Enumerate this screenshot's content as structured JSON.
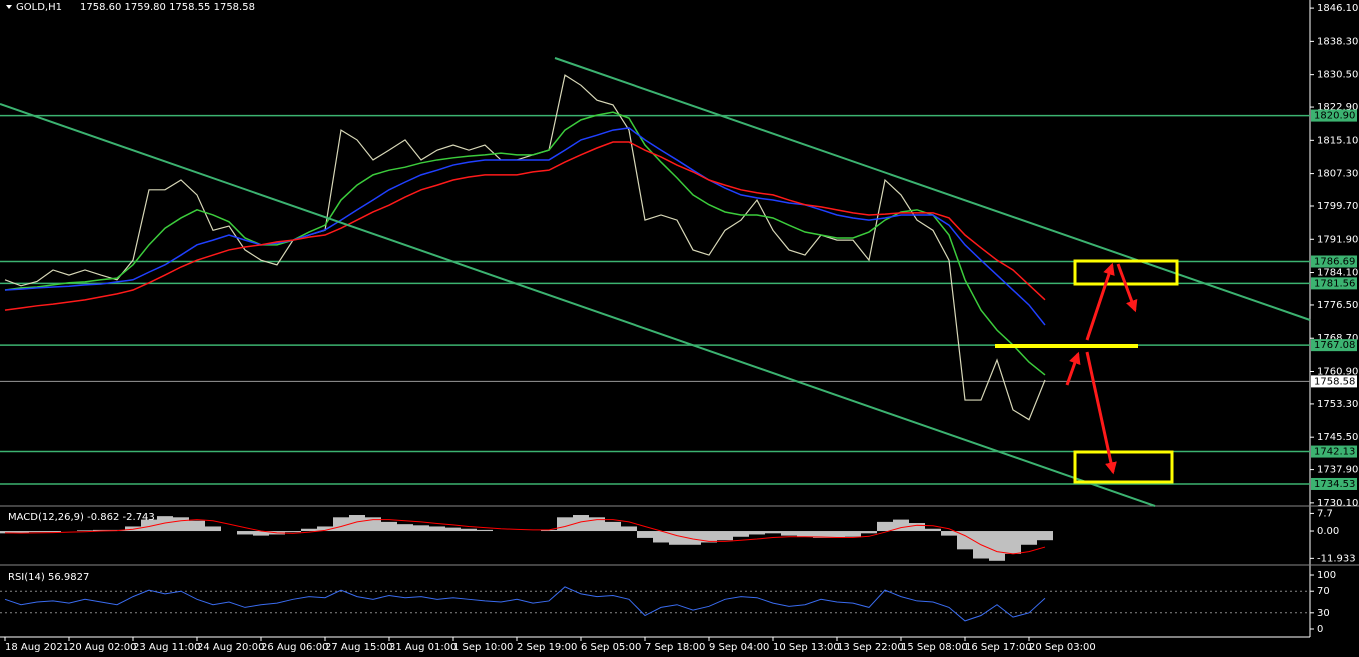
{
  "chart_data": [
    {
      "type": "line",
      "title": "GOLD,H1",
      "subtitle": "1758.60 1759.80 1758.55 1758.58",
      "categories": [
        "18 Aug 2021",
        null,
        null,
        null,
        "20 Aug 02:00",
        null,
        null,
        null,
        "23 Aug 11:00",
        null,
        null,
        null,
        "24 Aug 20:00",
        null,
        null,
        null,
        "26 Aug 06:00",
        null,
        null,
        null,
        "27 Aug 15:00",
        null,
        null,
        null,
        "31 Aug 01:00",
        null,
        null,
        null,
        "1 Sep 10:00",
        null,
        null,
        null,
        "2 Sep 19:00",
        null,
        null,
        null,
        "6 Sep 05:00",
        null,
        null,
        null,
        "7 Sep 18:00",
        null,
        null,
        null,
        "9 Sep 04:00",
        null,
        null,
        null,
        "10 Sep 13:00",
        null,
        null,
        null,
        "13 Sep 22:00",
        null,
        null,
        null,
        "15 Sep 08:00",
        null,
        null,
        null,
        "16 Sep 17:00",
        null,
        null,
        null,
        "20 Sep 03:00",
        null
      ],
      "series": [
        {
          "color": "#d8d8b8",
          "values": [
            1782.4,
            1781,
            1782,
            1784.7,
            1783.5,
            1784.7,
            1783.5,
            1782.4,
            1787,
            1803.5,
            1803.5,
            1805.8,
            1802.3,
            1794,
            1795,
            1789.4,
            1787,
            1785.9,
            1791.7,
            1792.9,
            1794,
            1817.5,
            1815.2,
            1810.5,
            1812.8,
            1815.2,
            1810.5,
            1812.8,
            1814,
            1812.8,
            1814,
            1810.5,
            1810.5,
            1811.7,
            1812.8,
            1830.4,
            1828,
            1824.5,
            1823.4,
            1817.5,
            1796.4,
            1797.6,
            1796.4,
            1789.4,
            1788.2,
            1794,
            1796.4,
            1801.1,
            1794,
            1789.4,
            1788.2,
            1792.9,
            1791.7,
            1791.7,
            1787,
            1805.8,
            1802.3,
            1796.4,
            1794,
            1787,
            1754.2,
            1754.2,
            1763.6,
            1751.9,
            1749.6,
            1758.9
          ]
        },
        {
          "color": "#3ccc3c",
          "values": [
            1780,
            1780.5,
            1780.7,
            1781.2,
            1781.7,
            1781.9,
            1782.4,
            1782.8,
            1785.9,
            1790.6,
            1794.5,
            1796.9,
            1798.8,
            1797.6,
            1796,
            1792.2,
            1790.6,
            1790.6,
            1791.7,
            1793.6,
            1795.2,
            1801.1,
            1804.6,
            1807,
            1808.1,
            1808.8,
            1809.8,
            1810.5,
            1811,
            1811.4,
            1811.7,
            1812.1,
            1811.7,
            1811.7,
            1812.8,
            1817.5,
            1819.9,
            1821,
            1821.7,
            1820.3,
            1814,
            1810,
            1806.3,
            1802.3,
            1800,
            1798.3,
            1797.6,
            1797.6,
            1796.9,
            1795.2,
            1793.6,
            1792.9,
            1792.2,
            1792.2,
            1793.6,
            1796.4,
            1798.3,
            1798.8,
            1797.6,
            1792.9,
            1782.4,
            1775.3,
            1770.6,
            1767.1,
            1763.1,
            1760.1
          ]
        },
        {
          "color": "#2040ff",
          "values": [
            1780,
            1780.2,
            1780.5,
            1780.7,
            1780.9,
            1781.2,
            1781.4,
            1781.9,
            1782.4,
            1784.2,
            1785.9,
            1788.2,
            1790.6,
            1791.7,
            1792.9,
            1791.7,
            1790.6,
            1791,
            1791.7,
            1792.9,
            1794.1,
            1796.4,
            1798.8,
            1801.1,
            1803.5,
            1805.3,
            1807,
            1808.1,
            1809.3,
            1810,
            1810.5,
            1810.5,
            1810.5,
            1810.5,
            1810.5,
            1812.8,
            1815.2,
            1816.3,
            1817.5,
            1818,
            1815.2,
            1812.8,
            1810.5,
            1808.1,
            1805.8,
            1803.9,
            1802.3,
            1801.6,
            1801.1,
            1800.4,
            1800,
            1798.8,
            1797.6,
            1796.9,
            1796.4,
            1796.9,
            1797.6,
            1797.6,
            1797.6,
            1795.2,
            1790.6,
            1787,
            1783.5,
            1780,
            1776.5,
            1771.8
          ]
        },
        {
          "color": "#ff1a1a",
          "values": [
            1775.3,
            1775.8,
            1776.3,
            1776.7,
            1777.2,
            1777.7,
            1778.4,
            1779.1,
            1780,
            1781.7,
            1783.5,
            1785.4,
            1787,
            1788.2,
            1789.4,
            1790.1,
            1790.6,
            1791.3,
            1791.7,
            1792.4,
            1792.9,
            1794.5,
            1796.4,
            1798.3,
            1799.9,
            1801.8,
            1803.5,
            1804.6,
            1805.8,
            1806.5,
            1807,
            1807,
            1807,
            1807.7,
            1808.1,
            1810,
            1811.7,
            1813.3,
            1814.7,
            1814.7,
            1812.8,
            1811.2,
            1809.3,
            1807.7,
            1805.8,
            1804.6,
            1803.5,
            1802.8,
            1802.3,
            1801.1,
            1800,
            1799.5,
            1798.8,
            1798.1,
            1797.6,
            1797.8,
            1798.1,
            1798.1,
            1798.1,
            1796.9,
            1792.9,
            1789.9,
            1787,
            1784.7,
            1781.2,
            1777.7
          ]
        }
      ],
      "ylim": [
        1729.6,
        1848.0
      ],
      "yticks": [
        {
          "value": 1846.1,
          "label": "1846.10"
        },
        {
          "value": 1838.3,
          "label": "1838.30"
        },
        {
          "value": 1830.5,
          "label": "1830.50"
        },
        {
          "value": 1822.9,
          "label": "1822.90"
        },
        {
          "value": 1815.1,
          "label": "1815.10"
        },
        {
          "value": 1807.3,
          "label": "1807.30"
        },
        {
          "value": 1799.7,
          "label": "1799.70"
        },
        {
          "value": 1791.9,
          "label": "1791.90"
        },
        {
          "value": 1784.1,
          "label": "1784.10"
        },
        {
          "value": 1776.5,
          "label": "1776.50"
        },
        {
          "value": 1768.7,
          "label": "1768.70"
        },
        {
          "value": 1760.9,
          "label": "1760.90"
        },
        {
          "value": 1753.3,
          "label": "1753.30"
        },
        {
          "value": 1745.5,
          "label": "1745.50"
        },
        {
          "value": 1737.9,
          "label": "1737.90"
        },
        {
          "value": 1730.1,
          "label": "1730.10"
        }
      ],
      "levels": [
        {
          "value": 1820.9,
          "label": "1820.90"
        },
        1786.69,
        1781.56,
        1767.08,
        1742.13,
        1734.53
      ],
      "level_color": "#3cb371",
      "last": 1758.58
    },
    {
      "type": "bar",
      "title": "MACD(12,26,9) -0.862 -2.743",
      "color": "#c0c0c0",
      "values": [
        -1,
        -1,
        -0.5,
        -0.5,
        0,
        0.3,
        0.5,
        0.5,
        2,
        5,
        6.5,
        6,
        4.5,
        2,
        0,
        -1.5,
        -2,
        -1.5,
        -0.5,
        1,
        2,
        6,
        7,
        6,
        4,
        3,
        2.5,
        2,
        1.5,
        1,
        0.5,
        0,
        0,
        0,
        0.5,
        6,
        7,
        6,
        4,
        2,
        -3,
        -5,
        -6,
        -6,
        -5,
        -4,
        -2.5,
        -1.5,
        -1,
        -2,
        -2.5,
        -3,
        -3,
        -2.5,
        -1,
        4,
        5,
        3.5,
        1,
        -2,
        -8,
        -12,
        -13,
        -10,
        -6,
        -4
      ],
      "signal": {
        "color": "#ff0000",
        "values": [
          -0.8,
          -0.9,
          -0.8,
          -0.7,
          -0.5,
          -0.3,
          0,
          0.2,
          0.8,
          2,
          3.5,
          4.5,
          5,
          4.5,
          3,
          1.5,
          0,
          -0.8,
          -1,
          -0.5,
          0.3,
          2,
          4,
          5,
          5,
          4.5,
          4,
          3.3,
          2.7,
          2,
          1.5,
          1,
          0.7,
          0.5,
          0.5,
          2,
          4,
          5,
          5,
          4,
          2,
          0,
          -2,
          -3.5,
          -4.5,
          -4.5,
          -4,
          -3.5,
          -2.8,
          -2.5,
          -2.5,
          -2.6,
          -2.8,
          -2.8,
          -2.3,
          -0.5,
          1.5,
          2.5,
          2.3,
          1,
          -2,
          -6,
          -9,
          -10,
          -9,
          -7
        ]
      },
      "ylim": [
        -14.4,
        10.5
      ],
      "yticks": [
        7.7,
        {
          "value": 0,
          "label": "0.00"
        },
        -11.933
      ]
    },
    {
      "type": "line",
      "title": "RSI(14) 56.9827",
      "color": "#3a6cf0",
      "values": [
        55,
        45,
        50,
        52,
        48,
        55,
        50,
        45,
        60,
        72,
        65,
        70,
        55,
        45,
        50,
        40,
        45,
        48,
        55,
        60,
        58,
        72,
        60,
        55,
        62,
        58,
        60,
        55,
        58,
        55,
        52,
        50,
        55,
        48,
        52,
        78,
        65,
        60,
        62,
        55,
        25,
        40,
        45,
        35,
        42,
        55,
        60,
        58,
        48,
        42,
        45,
        55,
        50,
        48,
        40,
        72,
        60,
        52,
        50,
        40,
        15,
        25,
        45,
        22,
        30,
        57
      ],
      "ylim": [
        -14.8,
        116.7
      ],
      "yticks": [
        100,
        70,
        30,
        0
      ],
      "levels": [
        70,
        30
      ]
    }
  ]
}
